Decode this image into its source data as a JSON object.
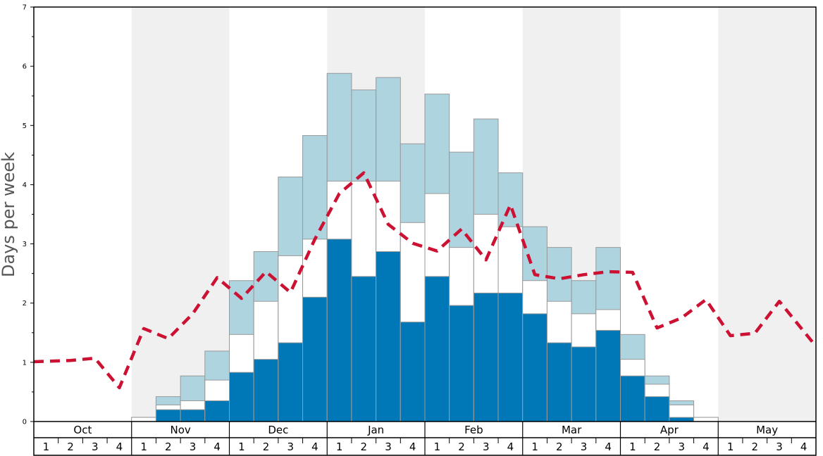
{
  "chart_data": {
    "type": "bar",
    "ylabel": "Days per week",
    "ylim": [
      0,
      7
    ],
    "yticks": [
      "0",
      "1",
      "2",
      "3",
      "4",
      "5",
      "6",
      "7"
    ],
    "months": [
      "Oct",
      "Nov",
      "Dec",
      "Jan",
      "Feb",
      "Mar",
      "Apr",
      "May"
    ],
    "weeks_per_month": [
      "1",
      "2",
      "3",
      "4"
    ],
    "shaded_months": [
      "Nov",
      "Jan",
      "Mar",
      "May"
    ],
    "colors": {
      "dark": "#0077b6",
      "mid": "#ffffff",
      "light": "#aed4e0",
      "line": "#cc1133",
      "shade": "#f0f0f0",
      "bar_stroke": "#999999"
    },
    "series": [
      {
        "name": "dark",
        "values": [
          0,
          0,
          0,
          0,
          0,
          0.2,
          0.2,
          0.35,
          0.83,
          1.05,
          1.33,
          2.1,
          3.08,
          2.45,
          2.87,
          1.68,
          2.45,
          1.96,
          2.17,
          2.17,
          1.82,
          1.33,
          1.26,
          1.54,
          0.77,
          0.42,
          0.07,
          0,
          0,
          0,
          0,
          0
        ]
      },
      {
        "name": "mid_top",
        "values": [
          0,
          0,
          0,
          0,
          0.07,
          0.28,
          0.35,
          0.7,
          1.47,
          2.03,
          2.8,
          3.08,
          4.06,
          4.06,
          4.06,
          3.36,
          3.85,
          2.94,
          3.5,
          3.29,
          2.38,
          2.03,
          1.82,
          1.89,
          1.05,
          0.63,
          0.28,
          0.07,
          0,
          0,
          0,
          0
        ]
      },
      {
        "name": "light_top",
        "values": [
          0,
          0,
          0,
          0,
          0.07,
          0.42,
          0.77,
          1.19,
          2.38,
          2.87,
          4.13,
          4.83,
          5.88,
          5.6,
          5.81,
          4.69,
          5.53,
          4.55,
          5.11,
          4.2,
          3.29,
          2.94,
          2.38,
          2.94,
          1.47,
          0.77,
          0.35,
          0.07,
          0,
          0,
          0,
          0
        ]
      },
      {
        "name": "line",
        "values": [
          1.01,
          1.03,
          1.07,
          0.57,
          1.57,
          1.4,
          1.82,
          2.43,
          2.08,
          2.53,
          2.18,
          3.08,
          3.85,
          4.2,
          3.33,
          3.01,
          2.88,
          3.25,
          2.73,
          3.66,
          2.48,
          2.41,
          2.48,
          2.53,
          2.52,
          1.58,
          1.75,
          2.06,
          1.45,
          1.49,
          2.03,
          1.27
        ]
      }
    ]
  }
}
